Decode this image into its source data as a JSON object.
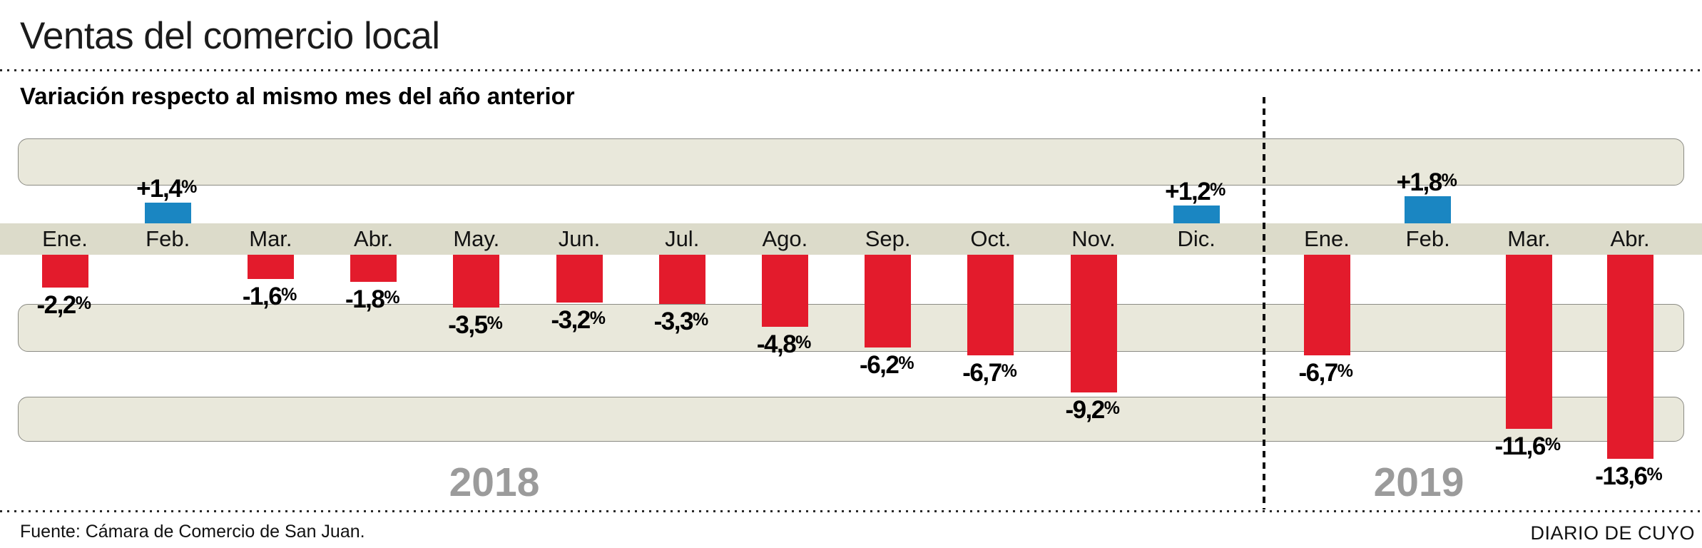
{
  "header": {
    "title": "Ventas del comercio local",
    "subtitle": "Variación respecto al mismo mes del año anterior"
  },
  "footer": {
    "source": "Fuente: Cámara de Comercio de San Juan.",
    "credit": "DIARIO DE CUYO"
  },
  "chart_data": {
    "type": "bar",
    "title": "Ventas del comercio local",
    "subtitle": "Variación respecto al mismo mes del año anterior",
    "unit": "%",
    "legend": "none",
    "layout_hints": {
      "background": "horizontal beige stripes with rounded ends",
      "baseline": "bars hang below the month-label band; positive bars rise above it",
      "year_divider": "vertical dashed line between Dic. 2018 and Ene. 2019",
      "grid": "off"
    },
    "groups": [
      {
        "year": "2018",
        "months": [
          "Ene.",
          "Feb.",
          "Mar.",
          "Abr.",
          "May.",
          "Jun.",
          "Jul.",
          "Ago.",
          "Sep.",
          "Oct.",
          "Nov.",
          "Dic."
        ],
        "values": [
          -2.2,
          1.4,
          -1.6,
          -1.8,
          -3.5,
          -3.2,
          -3.3,
          -4.8,
          -6.2,
          -6.7,
          -9.2,
          1.2
        ],
        "display_values": [
          "-2,2%",
          "+1,4%",
          "-1,6%",
          "-1,8%",
          "-3,5%",
          "-3,2%",
          "-3,3%",
          "-4,8%",
          "-6,2%",
          "-6,7%",
          "-9,2%",
          "+1,2%"
        ]
      },
      {
        "year": "2019",
        "months": [
          "Ene.",
          "Feb.",
          "Mar.",
          "Abr."
        ],
        "values": [
          -6.7,
          1.8,
          -11.6,
          -13.6
        ],
        "display_values": [
          "-6,7%",
          "+1,8%",
          "-11,6%",
          "-13,6%"
        ]
      }
    ],
    "colors": {
      "negative_bar": "#e31b2c",
      "positive_bar": "#1a86c2",
      "band": "#e9e8db",
      "band_border": "#8b8b84",
      "month_band": "#dcdbca",
      "year_label": "#9b9b9b"
    }
  }
}
